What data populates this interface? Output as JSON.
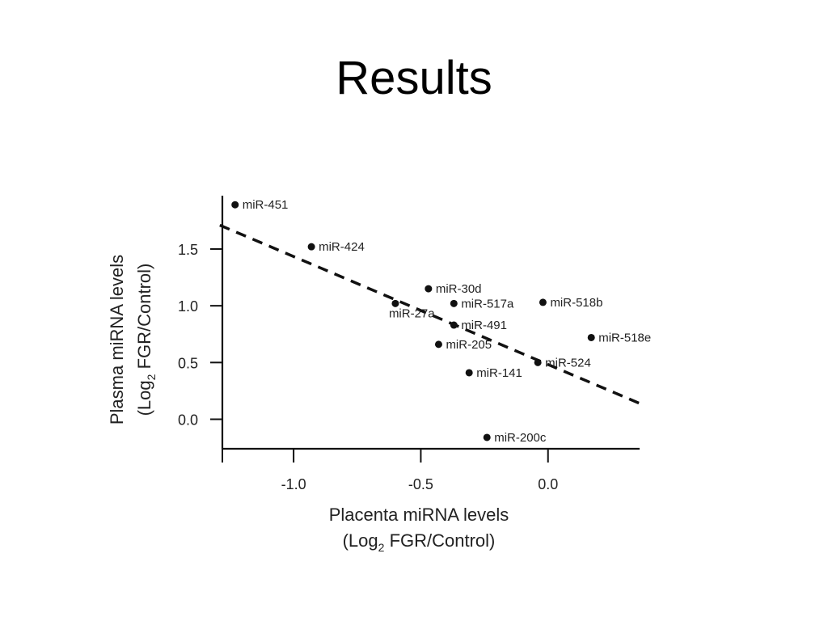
{
  "slide": {
    "title": "Results"
  },
  "chart_data": {
    "type": "scatter",
    "xlabel": "Placenta miRNA levels",
    "xlabel_unit": {
      "prefix": "(Log",
      "subscript": "2",
      "suffix": " FGR/Control)"
    },
    "ylabel": "Plasma miRNA levels",
    "ylabel_unit": {
      "prefix": "(Log",
      "subscript": "2",
      "suffix": " FGR/Control)"
    },
    "xlim": [
      -1.28,
      0.36
    ],
    "ylim": [
      -0.26,
      1.97
    ],
    "xticks": [
      -1.0,
      -0.5,
      0.0
    ],
    "xtick_labels": [
      "-1.0",
      "-0.5",
      "0.0"
    ],
    "yticks": [
      0.0,
      0.5,
      1.0,
      1.5
    ],
    "ytick_labels": [
      "0.0",
      "0.5",
      "1.0",
      "1.5"
    ],
    "grid": false,
    "points": [
      {
        "label": "miR-451",
        "x": -1.23,
        "y": 1.89
      },
      {
        "label": "miR-424",
        "x": -0.93,
        "y": 1.52
      },
      {
        "label": "miR-30d",
        "x": -0.47,
        "y": 1.15
      },
      {
        "label": "miR-27a",
        "x": -0.6,
        "y": 1.02
      },
      {
        "label": "miR-517a",
        "x": -0.37,
        "y": 1.02
      },
      {
        "label": "miR-518b",
        "x": -0.02,
        "y": 1.03
      },
      {
        "label": "miR-491",
        "x": -0.37,
        "y": 0.83
      },
      {
        "label": "miR-518e",
        "x": 0.17,
        "y": 0.72
      },
      {
        "label": "miR-205",
        "x": -0.43,
        "y": 0.66
      },
      {
        "label": "miR-524",
        "x": -0.04,
        "y": 0.5
      },
      {
        "label": "miR-141",
        "x": -0.31,
        "y": 0.41
      },
      {
        "label": "miR-200c",
        "x": -0.24,
        "y": -0.16
      }
    ],
    "trendline": {
      "style": "dashed",
      "from": [
        -1.29,
        1.71
      ],
      "to": [
        0.36,
        0.14
      ]
    }
  }
}
